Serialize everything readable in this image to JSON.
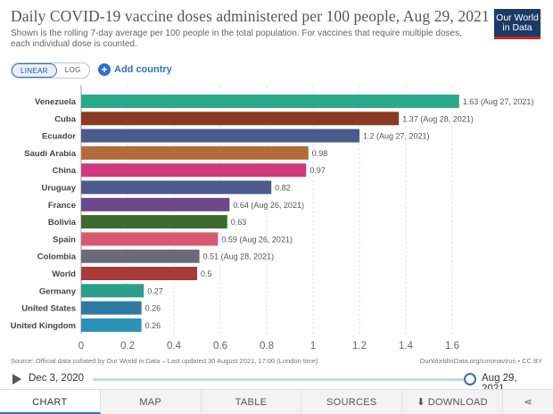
{
  "header": {
    "title": "Daily COVID-19 vaccine doses administered per 100 people, Aug 29, 2021",
    "subtitle": "Shown is the rolling 7-day average per 100 people in the total population. For vaccines that require multiple doses, each individual dose is counted."
  },
  "logo": {
    "line1": "Our World",
    "line2": "in Data"
  },
  "controls": {
    "linear": "LINEAR",
    "log": "LOG",
    "add_country": "Add country"
  },
  "chart_data": {
    "type": "bar",
    "orientation": "horizontal",
    "title": "Daily COVID-19 vaccine doses administered per 100 people, Aug 29, 2021",
    "xlim": [
      0,
      1.6
    ],
    "ticks": [
      0,
      0.2,
      0.4,
      0.6,
      0.8,
      1,
      1.2,
      1.4,
      1.6
    ],
    "categories": [
      "Venezuela",
      "Cuba",
      "Ecuador",
      "Saudi Arabia",
      "China",
      "Uruguay",
      "France",
      "Bolivia",
      "Spain",
      "Colombia",
      "World",
      "Germany",
      "United States",
      "United Kingdom"
    ],
    "values": [
      1.63,
      1.37,
      1.2,
      0.98,
      0.97,
      0.82,
      0.64,
      0.63,
      0.59,
      0.51,
      0.5,
      0.27,
      0.26,
      0.26
    ],
    "labels": [
      "1.63 (Aug 27, 2021)",
      "1.37 (Aug 28, 2021)",
      "1.2 (Aug 27, 2021)",
      "0.98",
      "0.97",
      "0.82",
      "0.64 (Aug 26, 2021)",
      "0.63",
      "0.59 (Aug 26, 2021)",
      "0.51 (Aug 28, 2021)",
      "0.5",
      "0.27",
      "0.26",
      "0.26"
    ],
    "colors": [
      "#2aaa8a",
      "#8c3a1f",
      "#4a5a8a",
      "#b36b3a",
      "#d03a7d",
      "#4c5a8c",
      "#6a4a8a",
      "#3a6a2e",
      "#d85a72",
      "#6a6a78",
      "#a83a3a",
      "#2aa08a",
      "#2f7aa0",
      "#2a92b6"
    ]
  },
  "footer": {
    "source": "Source: Official data collated by Our World in Data – Last updated 30 August 2021, 17:00 (London time)",
    "license": "OurWorldInData.org/coronavirus • CC BY"
  },
  "timeline": {
    "start": "Dec 3, 2020",
    "end": "Aug 29, 2021"
  },
  "tabs": {
    "chart": "CHART",
    "map": "MAP",
    "table": "TABLE",
    "sources": "SOURCES",
    "download": "DOWNLOAD",
    "share_icon": "share-icon"
  }
}
